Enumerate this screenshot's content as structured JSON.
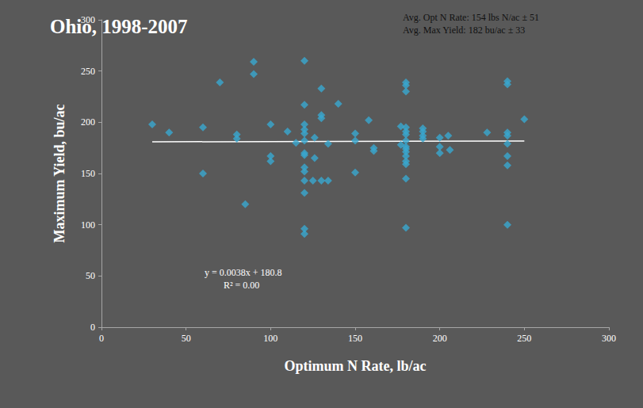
{
  "chart_data": {
    "type": "scatter",
    "title": "Ohio, 1998-2007",
    "annotations": [
      "Avg. Opt N Rate: 154 lbs N/ac ± 51",
      "Avg. Max Yield: 182 bu/ac ± 33",
      "y = 0.0038x + 180.8",
      "R² = 0.00"
    ],
    "x_label": "Optimum N Rate, lb/ac",
    "y_label": "Maximum Yield, bu/ac",
    "x": [
      30,
      40,
      60,
      60,
      70,
      80,
      80,
      85,
      90,
      90,
      100,
      100,
      100,
      110,
      115,
      120,
      120,
      120,
      120,
      120,
      120,
      120,
      120,
      120,
      120,
      120,
      120,
      120,
      120,
      126,
      126,
      125,
      130,
      130,
      130,
      130,
      134,
      134,
      140,
      150,
      150,
      150,
      158,
      161,
      161,
      180,
      180,
      180,
      180,
      180,
      180,
      180,
      180,
      180,
      180,
      180,
      180,
      180,
      180,
      180,
      177,
      177,
      190,
      190,
      190,
      190,
      200,
      200,
      200,
      205,
      206,
      228,
      240,
      240,
      240,
      240,
      240,
      240,
      240,
      240,
      250
    ],
    "values": [
      198,
      190,
      195,
      150,
      239,
      188,
      184,
      120,
      259,
      247,
      198,
      167,
      162,
      191,
      180,
      260,
      217,
      198,
      193,
      189,
      182,
      170,
      168,
      156,
      152,
      143,
      131,
      96,
      91,
      185,
      165,
      143,
      233,
      207,
      204,
      143,
      179,
      143,
      218,
      182,
      189,
      151,
      202,
      175,
      172,
      239,
      236,
      230,
      195,
      191,
      188,
      182,
      176,
      174,
      171,
      167,
      162,
      159,
      145,
      97,
      196,
      178,
      194,
      191,
      187,
      184,
      185,
      176,
      170,
      187,
      173,
      190,
      240,
      237,
      190,
      187,
      179,
      167,
      158,
      100,
      203
    ],
    "color": "#38a8cf",
    "marker": "diamond",
    "trendline": {
      "x": [
        30,
        250
      ],
      "values": [
        180.914,
        181.75
      ],
      "color": "#ffffff"
    },
    "xlim": [
      0,
      300
    ],
    "xticks": [
      0,
      50,
      100,
      150,
      200,
      250,
      300
    ],
    "ylim": [
      0,
      300
    ],
    "yticks": [
      0,
      50,
      100,
      150,
      200,
      250,
      300
    ],
    "grid": false
  }
}
